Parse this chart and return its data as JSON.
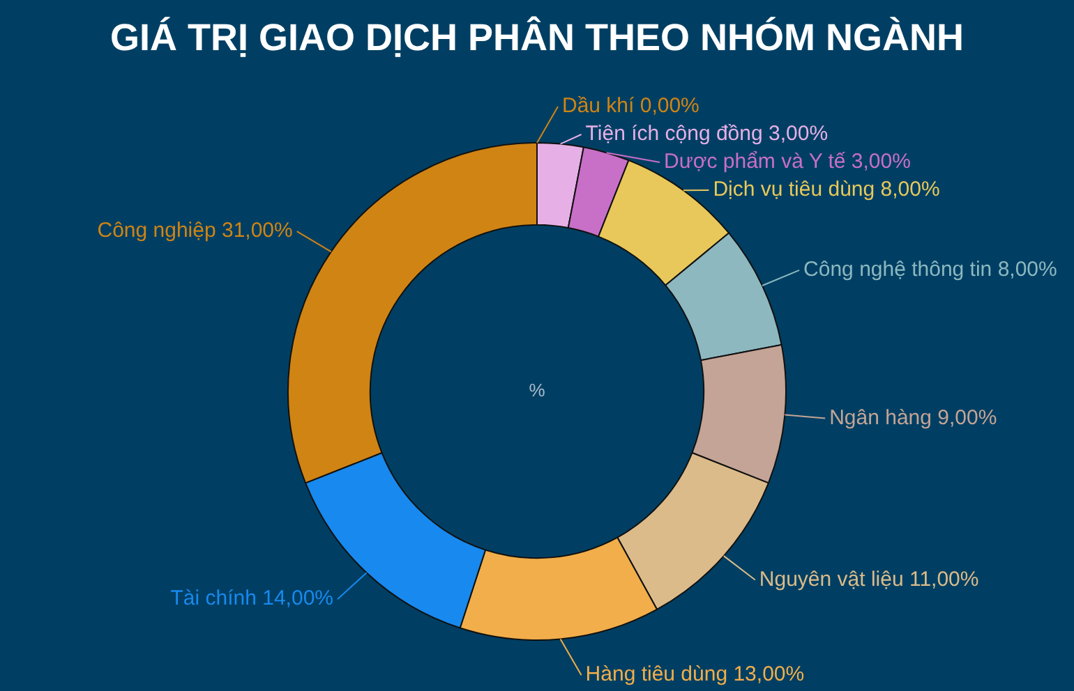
{
  "chart_data": {
    "type": "donut",
    "title": "GIÁ TRỊ GIAO DỊCH PHÂN THEO NHÓM NGÀNH",
    "categories": [
      "Dầu khí",
      "Tiện ích cộng đồng",
      "Dược phẩm và Y tế",
      "Dịch vụ tiêu dùng",
      "Công nghệ thông tin",
      "Ngân hàng",
      "Nguyên vật liệu",
      "Hàng tiêu dùng",
      "Tài chính",
      "Công nghiệp"
    ],
    "values": [
      0,
      3,
      3,
      8,
      8,
      9,
      11,
      13,
      14,
      31
    ],
    "value_labels": [
      "0,00%",
      "3,00%",
      "3,00%",
      "8,00%",
      "8,00%",
      "9,00%",
      "11,00%",
      "13,00%",
      "14,00%",
      "31,00%"
    ],
    "colors": [
      "#d08414",
      "#e6b0e6",
      "#c86fc8",
      "#e8c85a",
      "#8db8c0",
      "#c4a496",
      "#dbbb8a",
      "#f2ae4a",
      "#1889ee",
      "#d08414"
    ],
    "annotations": [
      "%"
    ],
    "legend": false
  }
}
